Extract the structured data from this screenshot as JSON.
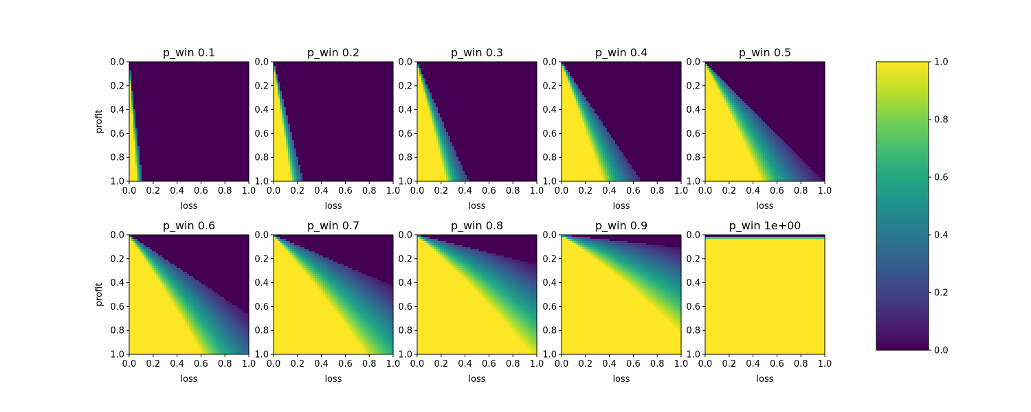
{
  "chart_data": {
    "type": "heatmap",
    "colormap": "viridis",
    "xlabel": "loss",
    "ylabel": "profit",
    "xlim": [
      0.0,
      1.0
    ],
    "ylim": [
      1.0,
      0.0
    ],
    "x_ticks": [
      "0.0",
      "0.2",
      "0.4",
      "0.6",
      "0.8",
      "1.0"
    ],
    "y_ticks": [
      "0.0",
      "0.2",
      "0.4",
      "0.6",
      "0.8",
      "1.0"
    ],
    "panels": [
      {
        "title": "p_win 0.1",
        "p_win": 0.1
      },
      {
        "title": "p_win 0.2",
        "p_win": 0.2
      },
      {
        "title": "p_win 0.3",
        "p_win": 0.3
      },
      {
        "title": "p_win 0.4",
        "p_win": 0.4
      },
      {
        "title": "p_win 0.5",
        "p_win": 0.5
      },
      {
        "title": "p_win 0.6",
        "p_win": 0.6
      },
      {
        "title": "p_win 0.7",
        "p_win": 0.7
      },
      {
        "title": "p_win 0.8",
        "p_win": 0.8
      },
      {
        "title": "p_win 0.9",
        "p_win": 0.9
      },
      {
        "title": "p_win 1e+00",
        "p_win": 1.0
      }
    ],
    "colorbar": {
      "range": [
        0.0,
        1.0
      ],
      "ticks": [
        "0.0",
        "0.2",
        "0.4",
        "0.6",
        "0.8",
        "1.0"
      ]
    }
  }
}
